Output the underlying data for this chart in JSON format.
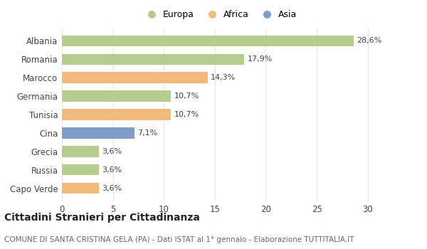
{
  "countries": [
    "Albania",
    "Romania",
    "Marocco",
    "Germania",
    "Tunisia",
    "Cina",
    "Grecia",
    "Russia",
    "Capo Verde"
  ],
  "values": [
    28.6,
    17.9,
    14.3,
    10.7,
    10.7,
    7.1,
    3.6,
    3.6,
    3.6
  ],
  "labels": [
    "28,6%",
    "17,9%",
    "14,3%",
    "10,7%",
    "10,7%",
    "7,1%",
    "3,6%",
    "3,6%",
    "3,6%"
  ],
  "categories": [
    "Europa",
    "Africa",
    "Asia"
  ],
  "bar_colors": [
    "#b5cc8e",
    "#b5cc8e",
    "#f2b97c",
    "#b5cc8e",
    "#f2b97c",
    "#7f9ec5",
    "#b5cc8e",
    "#b5cc8e",
    "#f2b97c"
  ],
  "legend_colors": [
    "#b5cc8e",
    "#f2b97c",
    "#7f9ec5"
  ],
  "xlim": [
    0,
    31
  ],
  "xticks": [
    0,
    5,
    10,
    15,
    20,
    25,
    30
  ],
  "title": "Cittadini Stranieri per Cittadinanza",
  "subtitle": "COMUNE DI SANTA CRISTINA GELA (PA) - Dati ISTAT al 1° gennaio - Elaborazione TUTTITALIA.IT",
  "bg_color": "#ffffff",
  "grid_color": "#e8e8e8",
  "bar_height": 0.6,
  "label_fontsize": 8,
  "ytick_fontsize": 8.5,
  "xtick_fontsize": 8.5,
  "title_fontsize": 10,
  "subtitle_fontsize": 7.5
}
